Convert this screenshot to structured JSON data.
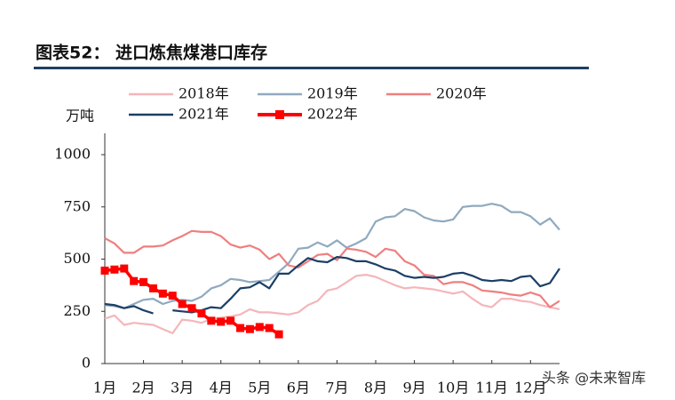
{
  "chart_data": {
    "type": "line",
    "title": "图表52：  进口炼焦煤港口库存",
    "y_label": "万吨",
    "watermark": "头条 @未来智库",
    "x": [
      1,
      1.25,
      1.5,
      1.75,
      2,
      2.25,
      2.5,
      2.75,
      3,
      3.25,
      3.5,
      3.75,
      4,
      4.25,
      4.5,
      4.75,
      5,
      5.25,
      5.5,
      5.75,
      6,
      6.25,
      6.5,
      6.75,
      7,
      7.25,
      7.5,
      7.75,
      8,
      8.25,
      8.5,
      8.75,
      9,
      9.25,
      9.5,
      9.75,
      10,
      10.25,
      10.5,
      10.75,
      11,
      11.25,
      11.5,
      11.75,
      12,
      12.25,
      12.5,
      12.75
    ],
    "xlim": [
      1,
      12.75
    ],
    "xticks": [
      {
        "value": 1,
        "label": "1月"
      },
      {
        "value": 2,
        "label": "2月"
      },
      {
        "value": 3,
        "label": "3月"
      },
      {
        "value": 4,
        "label": "4月"
      },
      {
        "value": 5,
        "label": "5月"
      },
      {
        "value": 6,
        "label": "6月"
      },
      {
        "value": 7,
        "label": "7月"
      },
      {
        "value": 8,
        "label": "8月"
      },
      {
        "value": 9,
        "label": "9月"
      },
      {
        "value": 10,
        "label": "10月"
      },
      {
        "value": 11,
        "label": "11月"
      },
      {
        "value": 12,
        "label": "12月"
      }
    ],
    "ylim": [
      0,
      1000
    ],
    "yticks": [
      0,
      250,
      500,
      750,
      1000
    ],
    "series": [
      {
        "name": "2018年",
        "color": "#f4b6b9",
        "values": [
          215,
          230,
          185,
          195,
          190,
          185,
          165,
          145,
          210,
          205,
          195,
          215,
          220,
          225,
          235,
          260,
          245,
          245,
          240,
          235,
          245,
          280,
          300,
          350,
          360,
          390,
          420,
          425,
          415,
          395,
          375,
          360,
          365,
          360,
          355,
          345,
          335,
          345,
          310,
          280,
          270,
          310,
          310,
          300,
          295,
          280,
          270,
          260
        ]
      },
      {
        "name": "2019年",
        "color": "#8fa9bf",
        "values": [
          280,
          275,
          265,
          285,
          305,
          310,
          285,
          300,
          305,
          300,
          320,
          360,
          375,
          405,
          400,
          390,
          395,
          400,
          440,
          480,
          550,
          555,
          580,
          560,
          590,
          555,
          575,
          600,
          680,
          700,
          705,
          740,
          730,
          700,
          685,
          680,
          690,
          750,
          755,
          755,
          765,
          755,
          725,
          725,
          705,
          665,
          695,
          640
        ]
      },
      {
        "name": "2020年",
        "color": "#ef7f7f",
        "values": [
          600,
          575,
          530,
          530,
          560,
          560,
          565,
          590,
          610,
          635,
          630,
          630,
          610,
          570,
          555,
          565,
          545,
          500,
          525,
          470,
          460,
          490,
          520,
          525,
          495,
          550,
          545,
          535,
          510,
          550,
          540,
          490,
          470,
          425,
          420,
          380,
          390,
          390,
          375,
          350,
          345,
          340,
          330,
          325,
          340,
          325,
          270,
          300
        ]
      },
      {
        "name": "2021年",
        "color": "#1b3f66",
        "values": [
          285,
          280,
          265,
          275,
          255,
          240,
          null,
          255,
          250,
          245,
          255,
          270,
          265,
          310,
          360,
          365,
          390,
          360,
          430,
          430,
          470,
          505,
          490,
          485,
          510,
          505,
          490,
          490,
          475,
          455,
          445,
          420,
          410,
          415,
          410,
          415,
          430,
          435,
          420,
          400,
          395,
          400,
          395,
          415,
          420,
          370,
          385,
          455
        ]
      },
      {
        "name": "2022年",
        "color": "#ff0000",
        "marker": "square",
        "values": [
          445,
          450,
          455,
          395,
          390,
          360,
          335,
          325,
          285,
          265,
          240,
          205,
          200,
          205,
          170,
          165,
          175,
          170,
          140,
          null,
          null,
          null,
          null,
          null,
          null,
          null,
          null,
          null,
          null,
          null,
          null,
          null,
          null,
          null,
          null,
          null,
          null,
          null,
          null,
          null,
          null,
          null,
          null,
          null,
          null,
          null,
          null,
          null
        ]
      }
    ]
  }
}
